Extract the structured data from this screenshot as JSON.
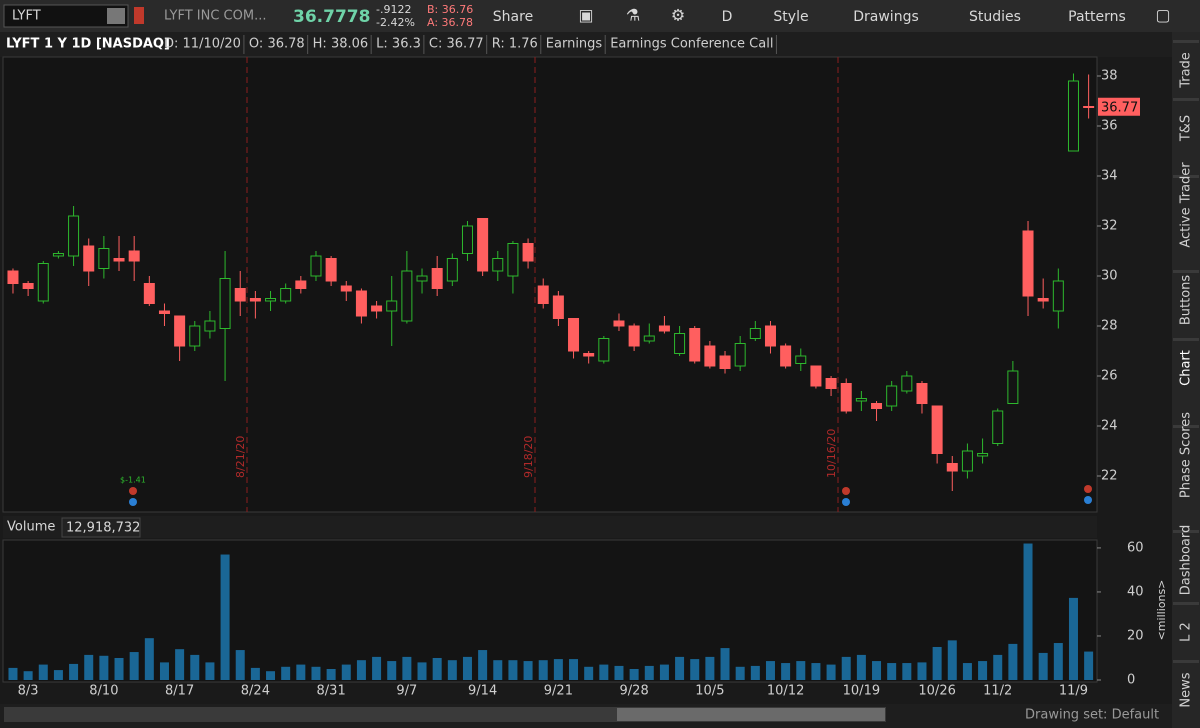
{
  "toolbar": {
    "symbol": "LYFT",
    "company": "LYFT INC COM...",
    "last": "36.7778",
    "change": "-.9122",
    "change_pct": "-2.42%",
    "bid": "B: 36.76",
    "ask": "A: 36.78",
    "buttons": [
      "Share",
      "D",
      "Style",
      "Drawings",
      "Studies",
      "Patterns"
    ]
  },
  "header": [
    "D: 11/10/20",
    "O: 36.78",
    "H: 38.06",
    "L: 36.3",
    "C: 36.77",
    "R: 1.76",
    "Earnings",
    "Earnings Conference Call"
  ],
  "annotations": {
    "events": [
      "8/21/20",
      "9/18/20",
      "10/16/20"
    ],
    "eps": "$-1.41",
    "axis_unit": "<millions>"
  },
  "sidebar": [
    "Trade",
    "T&S",
    "Active Trader",
    "Buttons",
    "Chart",
    "Phase Scores",
    "Dashboard",
    "L 2",
    "News"
  ],
  "footer": {
    "drawing_set": "Drawing set: Default"
  },
  "chart_data": [
    {
      "type": "candlestick",
      "title": "LYFT 1 Y 1D [NASDAQ]",
      "categories": [
        null,
        "8/3",
        null,
        null,
        null,
        null,
        "8/10",
        null,
        null,
        null,
        null,
        "8/17",
        null,
        null,
        null,
        null,
        "8/24",
        null,
        null,
        null,
        null,
        "8/31",
        null,
        null,
        null,
        null,
        "9/7",
        null,
        null,
        null,
        null,
        "9/14",
        null,
        null,
        null,
        null,
        "9/21",
        null,
        null,
        null,
        null,
        "9/28",
        null,
        null,
        null,
        null,
        "10/5",
        null,
        null,
        null,
        null,
        "10/12",
        null,
        null,
        null,
        null,
        "10/19",
        null,
        null,
        null,
        null,
        "10/26",
        null,
        null,
        null,
        "11/2",
        null,
        null,
        null,
        null,
        "11/9",
        null
      ],
      "open": [
        30.2,
        29.7,
        29.0,
        30.8,
        30.8,
        31.2,
        30.3,
        30.7,
        31.0,
        29.7,
        28.6,
        28.4,
        27.2,
        27.8,
        27.9,
        29.5,
        29.1,
        29.0,
        29.0,
        29.8,
        30.0,
        30.7,
        29.6,
        29.4,
        28.8,
        28.6,
        28.2,
        29.8,
        30.3,
        29.8,
        30.9,
        32.3,
        30.2,
        30.0,
        31.3,
        29.6,
        29.2,
        28.3,
        26.9,
        26.6,
        28.2,
        28.0,
        27.4,
        28.0,
        26.9,
        27.9,
        27.2,
        26.8,
        26.4,
        27.5,
        28.0,
        27.2,
        26.5,
        26.4,
        25.9,
        25.7,
        25.0,
        24.9,
        24.8,
        25.4,
        25.7,
        24.8,
        22.5,
        22.2,
        22.8,
        23.3,
        24.9,
        31.8,
        29.1,
        28.6,
        35.0,
        36.78
      ],
      "high": [
        30.3,
        29.8,
        30.6,
        31.0,
        32.8,
        31.5,
        31.6,
        31.6,
        31.6,
        30.0,
        28.9,
        28.4,
        28.2,
        28.6,
        31.0,
        30.2,
        29.4,
        29.4,
        29.7,
        30.0,
        31.0,
        30.8,
        29.8,
        29.5,
        29.0,
        30.0,
        31.0,
        30.3,
        30.8,
        30.9,
        32.2,
        32.3,
        31.0,
        31.4,
        31.5,
        29.9,
        29.4,
        28.3,
        27.0,
        27.6,
        28.5,
        28.1,
        28.1,
        28.4,
        28.0,
        28.0,
        27.4,
        27.0,
        27.6,
        28.2,
        28.2,
        27.3,
        27.1,
        26.4,
        26.0,
        25.9,
        25.4,
        25.0,
        25.8,
        26.2,
        25.8,
        24.8,
        22.8,
        23.3,
        23.5,
        24.7,
        26.6,
        32.2,
        29.9,
        30.3,
        38.1,
        38.06
      ],
      "low": [
        29.3,
        29.2,
        28.9,
        30.7,
        30.4,
        29.6,
        29.9,
        30.2,
        29.8,
        28.8,
        28.0,
        26.6,
        27.0,
        27.5,
        25.8,
        28.4,
        28.3,
        28.6,
        28.9,
        29.3,
        29.8,
        29.6,
        29.0,
        28.1,
        28.3,
        27.2,
        28.1,
        29.3,
        29.2,
        29.6,
        30.6,
        30.0,
        29.8,
        29.3,
        30.3,
        28.7,
        28.0,
        26.7,
        26.5,
        26.5,
        27.8,
        27.0,
        27.3,
        27.7,
        26.8,
        26.5,
        26.3,
        26.1,
        26.2,
        27.4,
        26.9,
        26.3,
        26.2,
        25.5,
        25.2,
        24.5,
        24.6,
        24.2,
        24.6,
        25.3,
        24.5,
        22.5,
        21.4,
        21.9,
        22.5,
        23.2,
        24.9,
        28.4,
        28.7,
        27.9,
        35.0,
        36.3
      ],
      "close": [
        29.7,
        29.5,
        30.5,
        30.9,
        32.4,
        30.2,
        31.1,
        30.6,
        30.6,
        28.9,
        28.5,
        27.2,
        28.0,
        28.2,
        29.9,
        29.0,
        29.0,
        29.1,
        29.5,
        29.5,
        30.8,
        29.8,
        29.4,
        28.4,
        28.6,
        29.0,
        30.2,
        30.0,
        29.5,
        30.7,
        32.0,
        30.2,
        30.7,
        31.3,
        30.6,
        28.9,
        28.3,
        27.0,
        26.8,
        27.5,
        28.0,
        27.2,
        27.6,
        27.8,
        27.7,
        26.6,
        26.4,
        26.3,
        27.3,
        27.9,
        27.2,
        26.4,
        26.8,
        25.6,
        25.5,
        24.6,
        25.1,
        24.7,
        25.6,
        26.0,
        24.9,
        22.9,
        22.2,
        23.0,
        22.9,
        24.6,
        26.2,
        29.2,
        29.0,
        29.8,
        37.8,
        36.77
      ],
      "up_color": "#2db82d",
      "down_color": "#ff5f5f",
      "ylim": [
        20.64,
        38.72
      ],
      "yticks": [
        22,
        24,
        26,
        28,
        30,
        32,
        34,
        36,
        38
      ]
    },
    {
      "type": "bar",
      "title": "Volume",
      "value_label": "12,918,732",
      "color": "#1a6796",
      "values": [
        5.5,
        4,
        7,
        4.5,
        7.3,
        11.4,
        11,
        10,
        12.7,
        19,
        8,
        14,
        11.4,
        8,
        57,
        13.6,
        5.5,
        4,
        6,
        7,
        6,
        5,
        7,
        9,
        10.5,
        8.6,
        10.5,
        8,
        10,
        9,
        10.5,
        13.6,
        9,
        9,
        8.6,
        9,
        9.5,
        9.5,
        6,
        7,
        6.4,
        5,
        6.4,
        7,
        10.5,
        9.5,
        10.5,
        14.5,
        6,
        6.4,
        8.6,
        7.7,
        8.6,
        7.7,
        7,
        10.5,
        11.4,
        8.6,
        7.7,
        7.7,
        8,
        15,
        18,
        7.7,
        8.6,
        11.4,
        16.4,
        62,
        12.3,
        16.8,
        37.3,
        12.918732
      ],
      "ylim": [
        0,
        63.6
      ],
      "yticks": [
        0,
        20,
        40,
        60
      ]
    }
  ]
}
